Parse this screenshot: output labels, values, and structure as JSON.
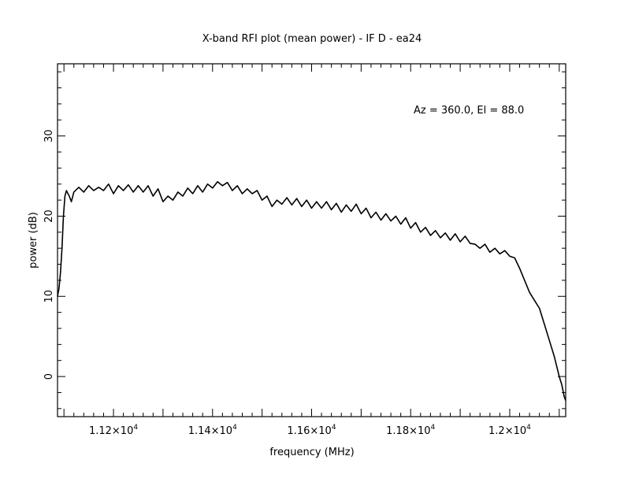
{
  "chart_data": {
    "type": "line",
    "title": "X-band RFI plot (mean power) - IF D - ea24",
    "xlabel": "frequency (MHz)",
    "ylabel": "power (dB)",
    "annotation": "Az = 360.0, El = 88.0",
    "xlim": [
      11087,
      12113
    ],
    "ylim": [
      -5,
      39
    ],
    "x_ticks": [
      {
        "value": 11200,
        "mantissa": "1.12",
        "exponent": "4"
      },
      {
        "value": 11400,
        "mantissa": "1.14",
        "exponent": "4"
      },
      {
        "value": 11600,
        "mantissa": "1.16",
        "exponent": "4"
      },
      {
        "value": 11800,
        "mantissa": "1.18",
        "exponent": "4"
      },
      {
        "value": 12000,
        "mantissa": "1.2",
        "exponent": "4"
      }
    ],
    "y_ticks": [
      0,
      10,
      20,
      30
    ],
    "grid": false,
    "line_color": "#000000",
    "series": [
      {
        "x": [
          11087,
          11090,
          11093,
          11096,
          11099,
          11102,
          11105,
          11108,
          11110,
          11115,
          11120,
          11130,
          11140,
          11150,
          11160,
          11170,
          11180,
          11190,
          11200,
          11210,
          11220,
          11230,
          11240,
          11250,
          11260,
          11270,
          11280,
          11290,
          11300,
          11310,
          11320,
          11330,
          11340,
          11350,
          11360,
          11370,
          11380,
          11390,
          11400,
          11410,
          11420,
          11430,
          11440,
          11450,
          11460,
          11470,
          11480,
          11490,
          11500,
          11510,
          11520,
          11530,
          11540,
          11550,
          11560,
          11570,
          11580,
          11590,
          11600,
          11610,
          11620,
          11630,
          11640,
          11650,
          11660,
          11670,
          11680,
          11690,
          11700,
          11710,
          11720,
          11730,
          11740,
          11750,
          11760,
          11770,
          11780,
          11790,
          11800,
          11810,
          11820,
          11830,
          11840,
          11850,
          11860,
          11870,
          11880,
          11890,
          11900,
          11910,
          11920,
          11930,
          11940,
          11950,
          11960,
          11970,
          11980,
          11990,
          12000,
          12010,
          12020,
          12030,
          12040,
          12050,
          12060,
          12070,
          12080,
          12090,
          12100,
          12105,
          12110,
          12113
        ],
        "y": [
          10,
          11,
          13,
          16,
          20,
          22.5,
          23.2,
          22.8,
          22.6,
          21.8,
          23.0,
          23.6,
          23.0,
          23.8,
          23.2,
          23.6,
          23.2,
          24.0,
          22.8,
          23.8,
          23.2,
          23.9,
          23.0,
          23.8,
          23.0,
          23.8,
          22.5,
          23.4,
          21.8,
          22.5,
          22.0,
          23.0,
          22.5,
          23.5,
          22.8,
          23.8,
          23.0,
          24.0,
          23.5,
          24.3,
          23.8,
          24.2,
          23.2,
          23.8,
          22.8,
          23.4,
          22.8,
          23.2,
          22.0,
          22.5,
          21.2,
          22.0,
          21.5,
          22.3,
          21.4,
          22.2,
          21.2,
          22.0,
          21.0,
          21.8,
          21.0,
          21.8,
          20.8,
          21.6,
          20.5,
          21.4,
          20.6,
          21.5,
          20.3,
          21.0,
          19.8,
          20.5,
          19.5,
          20.3,
          19.4,
          20.0,
          19.0,
          19.8,
          18.5,
          19.2,
          18.0,
          18.6,
          17.6,
          18.2,
          17.3,
          17.9,
          17.0,
          17.8,
          16.8,
          17.5,
          16.6,
          16.5,
          16.0,
          16.5,
          15.5,
          16.0,
          15.3,
          15.7,
          15.0,
          14.8,
          13.5,
          12.0,
          10.5,
          9.5,
          8.5,
          6.5,
          4.5,
          2.5,
          0,
          -1.0,
          -2.5,
          -3.0
        ]
      }
    ]
  }
}
